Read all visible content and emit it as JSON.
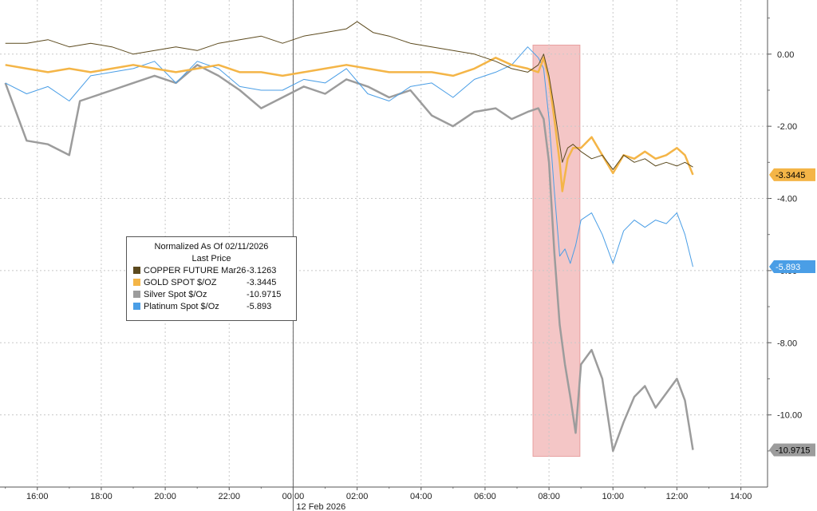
{
  "chart_data": {
    "type": "line",
    "legend": {
      "title_line1": "Normalized As Of 02/11/2026",
      "title_line2": "Last Price",
      "placement": "center-left"
    },
    "x_axis": {
      "ticks": [
        "16:00",
        "18:00",
        "20:00",
        "22:00",
        "00:00",
        "02:00",
        "04:00",
        "06:00",
        "08:00",
        "10:00",
        "12:00",
        "14:00"
      ],
      "date_label": "12 Feb 2026",
      "range": [
        "14:50",
        "14:50+1d"
      ]
    },
    "y_axis": {
      "side": "right",
      "ticks": [
        "0.00",
        "-2.00",
        "-4.00",
        "-6.00",
        "-8.00",
        "-10.00"
      ],
      "ylim": [
        -12.0,
        1.5
      ]
    },
    "grid": true,
    "highlight": {
      "from": "07:30",
      "to": "08:58",
      "color": "#f4c6c6"
    },
    "series": [
      {
        "name": "COPPER FUTURE Mar26",
        "value": "-3.1263",
        "color": "#5c4a1e",
        "width": 1,
        "points": [
          [
            "15:00",
            0.3
          ],
          [
            "15:40",
            0.3
          ],
          [
            "16:20",
            0.4
          ],
          [
            "17:00",
            0.2
          ],
          [
            "17:40",
            0.3
          ],
          [
            "18:20",
            0.2
          ],
          [
            "19:00",
            0.0
          ],
          [
            "19:40",
            0.1
          ],
          [
            "20:20",
            0.2
          ],
          [
            "21:00",
            0.1
          ],
          [
            "21:40",
            0.3
          ],
          [
            "22:20",
            0.4
          ],
          [
            "23:00",
            0.5
          ],
          [
            "23:40",
            0.3
          ],
          [
            "00:20",
            0.5
          ],
          [
            "01:00",
            0.6
          ],
          [
            "01:40",
            0.7
          ],
          [
            "02:00",
            0.9
          ],
          [
            "02:30",
            0.6
          ],
          [
            "03:00",
            0.5
          ],
          [
            "03:40",
            0.3
          ],
          [
            "04:20",
            0.2
          ],
          [
            "05:00",
            0.1
          ],
          [
            "05:40",
            0.0
          ],
          [
            "06:20",
            -0.2
          ],
          [
            "06:50",
            -0.4
          ],
          [
            "07:20",
            -0.5
          ],
          [
            "07:40",
            -0.3
          ],
          [
            "07:50",
            0.0
          ],
          [
            "08:00",
            -0.6
          ],
          [
            "08:10",
            -1.5
          ],
          [
            "08:20",
            -2.5
          ],
          [
            "08:25",
            -3.0
          ],
          [
            "08:35",
            -2.6
          ],
          [
            "08:45",
            -2.5
          ],
          [
            "09:00",
            -2.7
          ],
          [
            "09:20",
            -2.9
          ],
          [
            "09:40",
            -2.8
          ],
          [
            "10:00",
            -3.2
          ],
          [
            "10:20",
            -2.8
          ],
          [
            "10:40",
            -3.0
          ],
          [
            "11:00",
            -2.9
          ],
          [
            "11:20",
            -3.1
          ],
          [
            "11:40",
            -3.0
          ],
          [
            "12:00",
            -3.1
          ],
          [
            "12:15",
            -3.0
          ],
          [
            "12:30",
            -3.13
          ]
        ]
      },
      {
        "name": "GOLD SPOT $/OZ",
        "value": "-3.3445",
        "color": "#f4b547",
        "width": 2.5,
        "points": [
          [
            "15:00",
            -0.3
          ],
          [
            "15:40",
            -0.4
          ],
          [
            "16:20",
            -0.5
          ],
          [
            "17:00",
            -0.4
          ],
          [
            "17:40",
            -0.5
          ],
          [
            "18:20",
            -0.4
          ],
          [
            "19:00",
            -0.3
          ],
          [
            "19:40",
            -0.4
          ],
          [
            "20:20",
            -0.5
          ],
          [
            "21:00",
            -0.4
          ],
          [
            "21:40",
            -0.3
          ],
          [
            "22:20",
            -0.5
          ],
          [
            "23:00",
            -0.5
          ],
          [
            "23:40",
            -0.6
          ],
          [
            "00:20",
            -0.5
          ],
          [
            "01:00",
            -0.4
          ],
          [
            "01:40",
            -0.3
          ],
          [
            "02:20",
            -0.4
          ],
          [
            "03:00",
            -0.5
          ],
          [
            "03:40",
            -0.5
          ],
          [
            "04:20",
            -0.5
          ],
          [
            "05:00",
            -0.6
          ],
          [
            "05:40",
            -0.4
          ],
          [
            "06:20",
            -0.1
          ],
          [
            "06:50",
            -0.3
          ],
          [
            "07:20",
            -0.4
          ],
          [
            "07:40",
            -0.5
          ],
          [
            "07:50",
            -0.1
          ],
          [
            "08:00",
            -0.7
          ],
          [
            "08:10",
            -1.8
          ],
          [
            "08:20",
            -3.0
          ],
          [
            "08:25",
            -3.8
          ],
          [
            "08:35",
            -2.9
          ],
          [
            "08:45",
            -2.6
          ],
          [
            "09:00",
            -2.6
          ],
          [
            "09:20",
            -2.3
          ],
          [
            "09:40",
            -2.8
          ],
          [
            "10:00",
            -3.3
          ],
          [
            "10:20",
            -2.8
          ],
          [
            "10:40",
            -2.9
          ],
          [
            "11:00",
            -2.7
          ],
          [
            "11:20",
            -2.9
          ],
          [
            "11:40",
            -2.8
          ],
          [
            "12:00",
            -2.6
          ],
          [
            "12:15",
            -2.8
          ],
          [
            "12:30",
            -3.3445
          ]
        ]
      },
      {
        "name": "Silver Spot $/Oz",
        "value": "-10.9715",
        "color": "#9c9c9c",
        "width": 2.5,
        "points": [
          [
            "15:00",
            -0.8
          ],
          [
            "15:40",
            -2.4
          ],
          [
            "16:20",
            -2.5
          ],
          [
            "17:00",
            -2.8
          ],
          [
            "17:20",
            -1.3
          ],
          [
            "17:40",
            -1.2
          ],
          [
            "18:20",
            -1.0
          ],
          [
            "19:00",
            -0.8
          ],
          [
            "19:40",
            -0.6
          ],
          [
            "20:20",
            -0.8
          ],
          [
            "21:00",
            -0.3
          ],
          [
            "21:40",
            -0.6
          ],
          [
            "22:20",
            -1.0
          ],
          [
            "23:00",
            -1.5
          ],
          [
            "23:40",
            -1.2
          ],
          [
            "00:20",
            -0.9
          ],
          [
            "01:00",
            -1.1
          ],
          [
            "01:40",
            -0.7
          ],
          [
            "02:20",
            -0.9
          ],
          [
            "03:00",
            -1.2
          ],
          [
            "03:40",
            -1.0
          ],
          [
            "04:20",
            -1.7
          ],
          [
            "05:00",
            -2.0
          ],
          [
            "05:40",
            -1.6
          ],
          [
            "06:20",
            -1.5
          ],
          [
            "06:50",
            -1.8
          ],
          [
            "07:20",
            -1.6
          ],
          [
            "07:40",
            -1.5
          ],
          [
            "07:50",
            -1.8
          ],
          [
            "08:00",
            -3.0
          ],
          [
            "08:10",
            -5.5
          ],
          [
            "08:20",
            -7.5
          ],
          [
            "08:30",
            -8.6
          ],
          [
            "08:40",
            -9.5
          ],
          [
            "08:50",
            -10.5
          ],
          [
            "09:00",
            -8.6
          ],
          [
            "09:20",
            -8.2
          ],
          [
            "09:40",
            -9.0
          ],
          [
            "10:00",
            -11.0
          ],
          [
            "10:20",
            -10.2
          ],
          [
            "10:40",
            -9.5
          ],
          [
            "11:00",
            -9.2
          ],
          [
            "11:20",
            -9.8
          ],
          [
            "11:40",
            -9.4
          ],
          [
            "12:00",
            -9.0
          ],
          [
            "12:15",
            -9.6
          ],
          [
            "12:30",
            -10.9715
          ]
        ]
      },
      {
        "name": "Platinum Spot $/Oz",
        "value": "-5.893",
        "color": "#4a9ee6",
        "width": 1,
        "points": [
          [
            "15:00",
            -0.8
          ],
          [
            "15:40",
            -1.1
          ],
          [
            "16:20",
            -0.9
          ],
          [
            "17:00",
            -1.3
          ],
          [
            "17:40",
            -0.6
          ],
          [
            "18:20",
            -0.5
          ],
          [
            "19:00",
            -0.4
          ],
          [
            "19:40",
            -0.2
          ],
          [
            "20:20",
            -0.8
          ],
          [
            "21:00",
            -0.2
          ],
          [
            "21:40",
            -0.4
          ],
          [
            "22:20",
            -0.9
          ],
          [
            "23:00",
            -1.0
          ],
          [
            "23:40",
            -1.0
          ],
          [
            "00:20",
            -0.7
          ],
          [
            "01:00",
            -0.8
          ],
          [
            "01:40",
            -0.4
          ],
          [
            "02:20",
            -1.1
          ],
          [
            "03:00",
            -1.3
          ],
          [
            "03:40",
            -0.9
          ],
          [
            "04:20",
            -0.8
          ],
          [
            "05:00",
            -1.2
          ],
          [
            "05:40",
            -0.7
          ],
          [
            "06:20",
            -0.5
          ],
          [
            "06:50",
            -0.3
          ],
          [
            "07:20",
            0.2
          ],
          [
            "07:40",
            -0.1
          ],
          [
            "07:50",
            -0.4
          ],
          [
            "08:00",
            -1.8
          ],
          [
            "08:10",
            -3.8
          ],
          [
            "08:20",
            -5.6
          ],
          [
            "08:30",
            -5.4
          ],
          [
            "08:40",
            -5.8
          ],
          [
            "08:50",
            -5.3
          ],
          [
            "09:00",
            -4.6
          ],
          [
            "09:20",
            -4.4
          ],
          [
            "09:40",
            -5.0
          ],
          [
            "10:00",
            -5.8
          ],
          [
            "10:20",
            -4.9
          ],
          [
            "10:40",
            -4.6
          ],
          [
            "11:00",
            -4.8
          ],
          [
            "11:20",
            -4.6
          ],
          [
            "11:40",
            -4.7
          ],
          [
            "12:00",
            -4.4
          ],
          [
            "12:15",
            -5.0
          ],
          [
            "12:30",
            -5.893
          ]
        ]
      }
    ],
    "end_labels": [
      {
        "text": "-3.3445",
        "series": "GOLD SPOT $/OZ",
        "bg": "#f4b547",
        "fg": "#000000"
      },
      {
        "text": "-5.893",
        "series": "Platinum Spot $/Oz",
        "bg": "#4a9ee6",
        "fg": "#ffffff"
      },
      {
        "text": "-10.9715",
        "series": "Silver Spot $/Oz",
        "bg": "#9c9c9c",
        "fg": "#000000"
      }
    ]
  }
}
